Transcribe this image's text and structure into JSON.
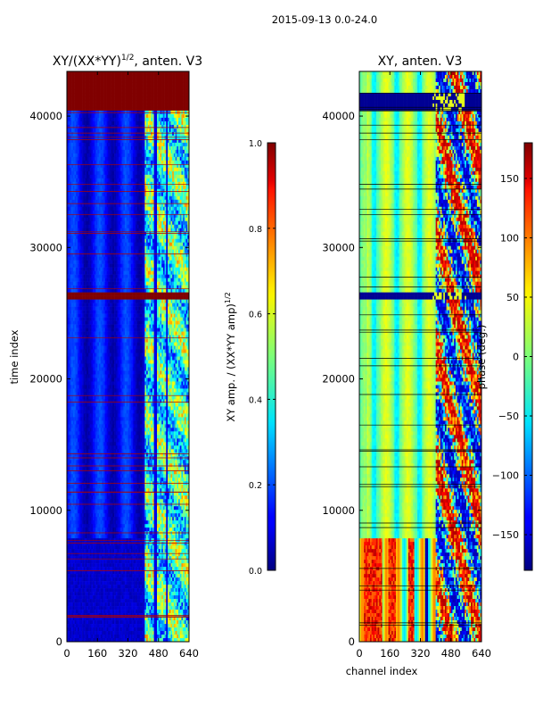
{
  "figure": {
    "suptitle": "2015-09-13 0.0-24.0"
  },
  "chart_data": [
    {
      "type": "heatmap",
      "title": "XY/(XX*YY)",
      "title_superscript": "1/2",
      "title_suffix": ", anten. V3",
      "xlabel": "",
      "ylabel": "time index",
      "xlim": [
        0,
        640
      ],
      "ylim": [
        0,
        43400
      ],
      "xticks": [
        0,
        160,
        320,
        480,
        640
      ],
      "yticks": [
        0,
        10000,
        20000,
        30000,
        40000
      ],
      "colorbar": {
        "label": "XY amp. / (XX*YY amp)",
        "label_superscript": "1/2",
        "range": [
          0.0,
          1.0
        ],
        "ticks": [
          "0.0",
          "0.2",
          "0.4",
          "0.6",
          "0.8",
          "1.0"
        ],
        "colormap": "jet"
      },
      "saturated_rows": [
        [
          40400,
          43400
        ],
        [
          26100,
          26600
        ]
      ],
      "active_channels": [
        410,
        640
      ],
      "background_level": 0.1
    },
    {
      "type": "heatmap",
      "title": "XY, anten. V3",
      "xlabel": "channel index",
      "ylabel": "",
      "xlim": [
        0,
        640
      ],
      "ylim": [
        0,
        43400
      ],
      "xticks": [
        0,
        160,
        320,
        480,
        640
      ],
      "yticks": [
        0,
        10000,
        20000,
        30000,
        40000
      ],
      "colorbar": {
        "label": "phase (deg.)",
        "range": [
          -180,
          180
        ],
        "ticks": [
          "−150",
          "−100",
          "−50",
          "0",
          "50",
          "100",
          "150"
        ],
        "tick_values": [
          -150,
          -100,
          -50,
          0,
          50,
          100,
          150
        ],
        "colormap": "jet"
      },
      "saturated_rows": [
        [
          40400,
          41800
        ],
        [
          26100,
          26600
        ]
      ],
      "active_channels": [
        400,
        640
      ],
      "background_level": 0.5
    }
  ]
}
